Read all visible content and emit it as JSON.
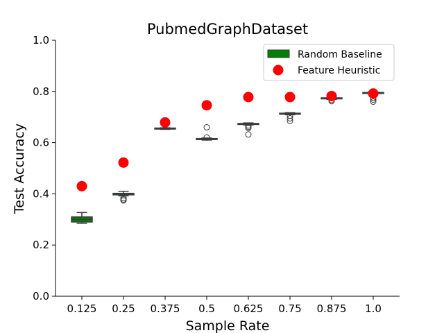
{
  "chart_data": {
    "type": "box",
    "title": "PubmedGraphDataset",
    "xlabel": "Sample Rate",
    "ylabel": "Test Accuracy",
    "categories": [
      "0.125",
      "0.25",
      "0.375",
      "0.5",
      "0.625",
      "0.75",
      "0.875",
      "1.0"
    ],
    "ylim": [
      0.0,
      1.0
    ],
    "yticks": [
      "0.0",
      "0.2",
      "0.4",
      "0.6",
      "0.8",
      "1.0"
    ],
    "grid": false,
    "legend_position": "top-right",
    "series": [
      {
        "name": "Random Baseline",
        "kind": "box",
        "color": "#008000",
        "boxes": [
          {
            "q1": 0.29,
            "median": 0.3,
            "q3": 0.31,
            "whisker_low": 0.285,
            "whisker_high": 0.327,
            "outliers": []
          },
          {
            "q1": 0.396,
            "median": 0.4,
            "q3": 0.402,
            "whisker_low": 0.392,
            "whisker_high": 0.41,
            "outliers": [
              0.374,
              0.378,
              0.383
            ]
          },
          {
            "q1": 0.653,
            "median": 0.655,
            "q3": 0.657,
            "whisker_low": 0.652,
            "whisker_high": 0.658,
            "outliers": []
          },
          {
            "q1": 0.612,
            "median": 0.614,
            "q3": 0.616,
            "whisker_low": 0.61,
            "whisker_high": 0.618,
            "outliers": [
              0.62,
              0.66
            ]
          },
          {
            "q1": 0.671,
            "median": 0.673,
            "q3": 0.675,
            "whisker_low": 0.669,
            "whisker_high": 0.677,
            "outliers": [
              0.632,
              0.657,
              0.662,
              0.667
            ]
          },
          {
            "q1": 0.711,
            "median": 0.713,
            "q3": 0.715,
            "whisker_low": 0.709,
            "whisker_high": 0.717,
            "outliers": [
              0.685,
              0.695,
              0.705
            ]
          },
          {
            "q1": 0.771,
            "median": 0.773,
            "q3": 0.775,
            "whisker_low": 0.769,
            "whisker_high": 0.777,
            "outliers": [
              0.762,
              0.767
            ]
          },
          {
            "q1": 0.792,
            "median": 0.794,
            "q3": 0.796,
            "whisker_low": 0.79,
            "whisker_high": 0.798,
            "outliers": [
              0.76,
              0.768,
              0.775
            ]
          }
        ]
      },
      {
        "name": "Feature Heuristic",
        "kind": "scatter",
        "color": "#ff0000",
        "values": [
          0.43,
          0.522,
          0.679,
          0.746,
          0.778,
          0.778,
          0.782,
          0.792
        ]
      }
    ]
  }
}
